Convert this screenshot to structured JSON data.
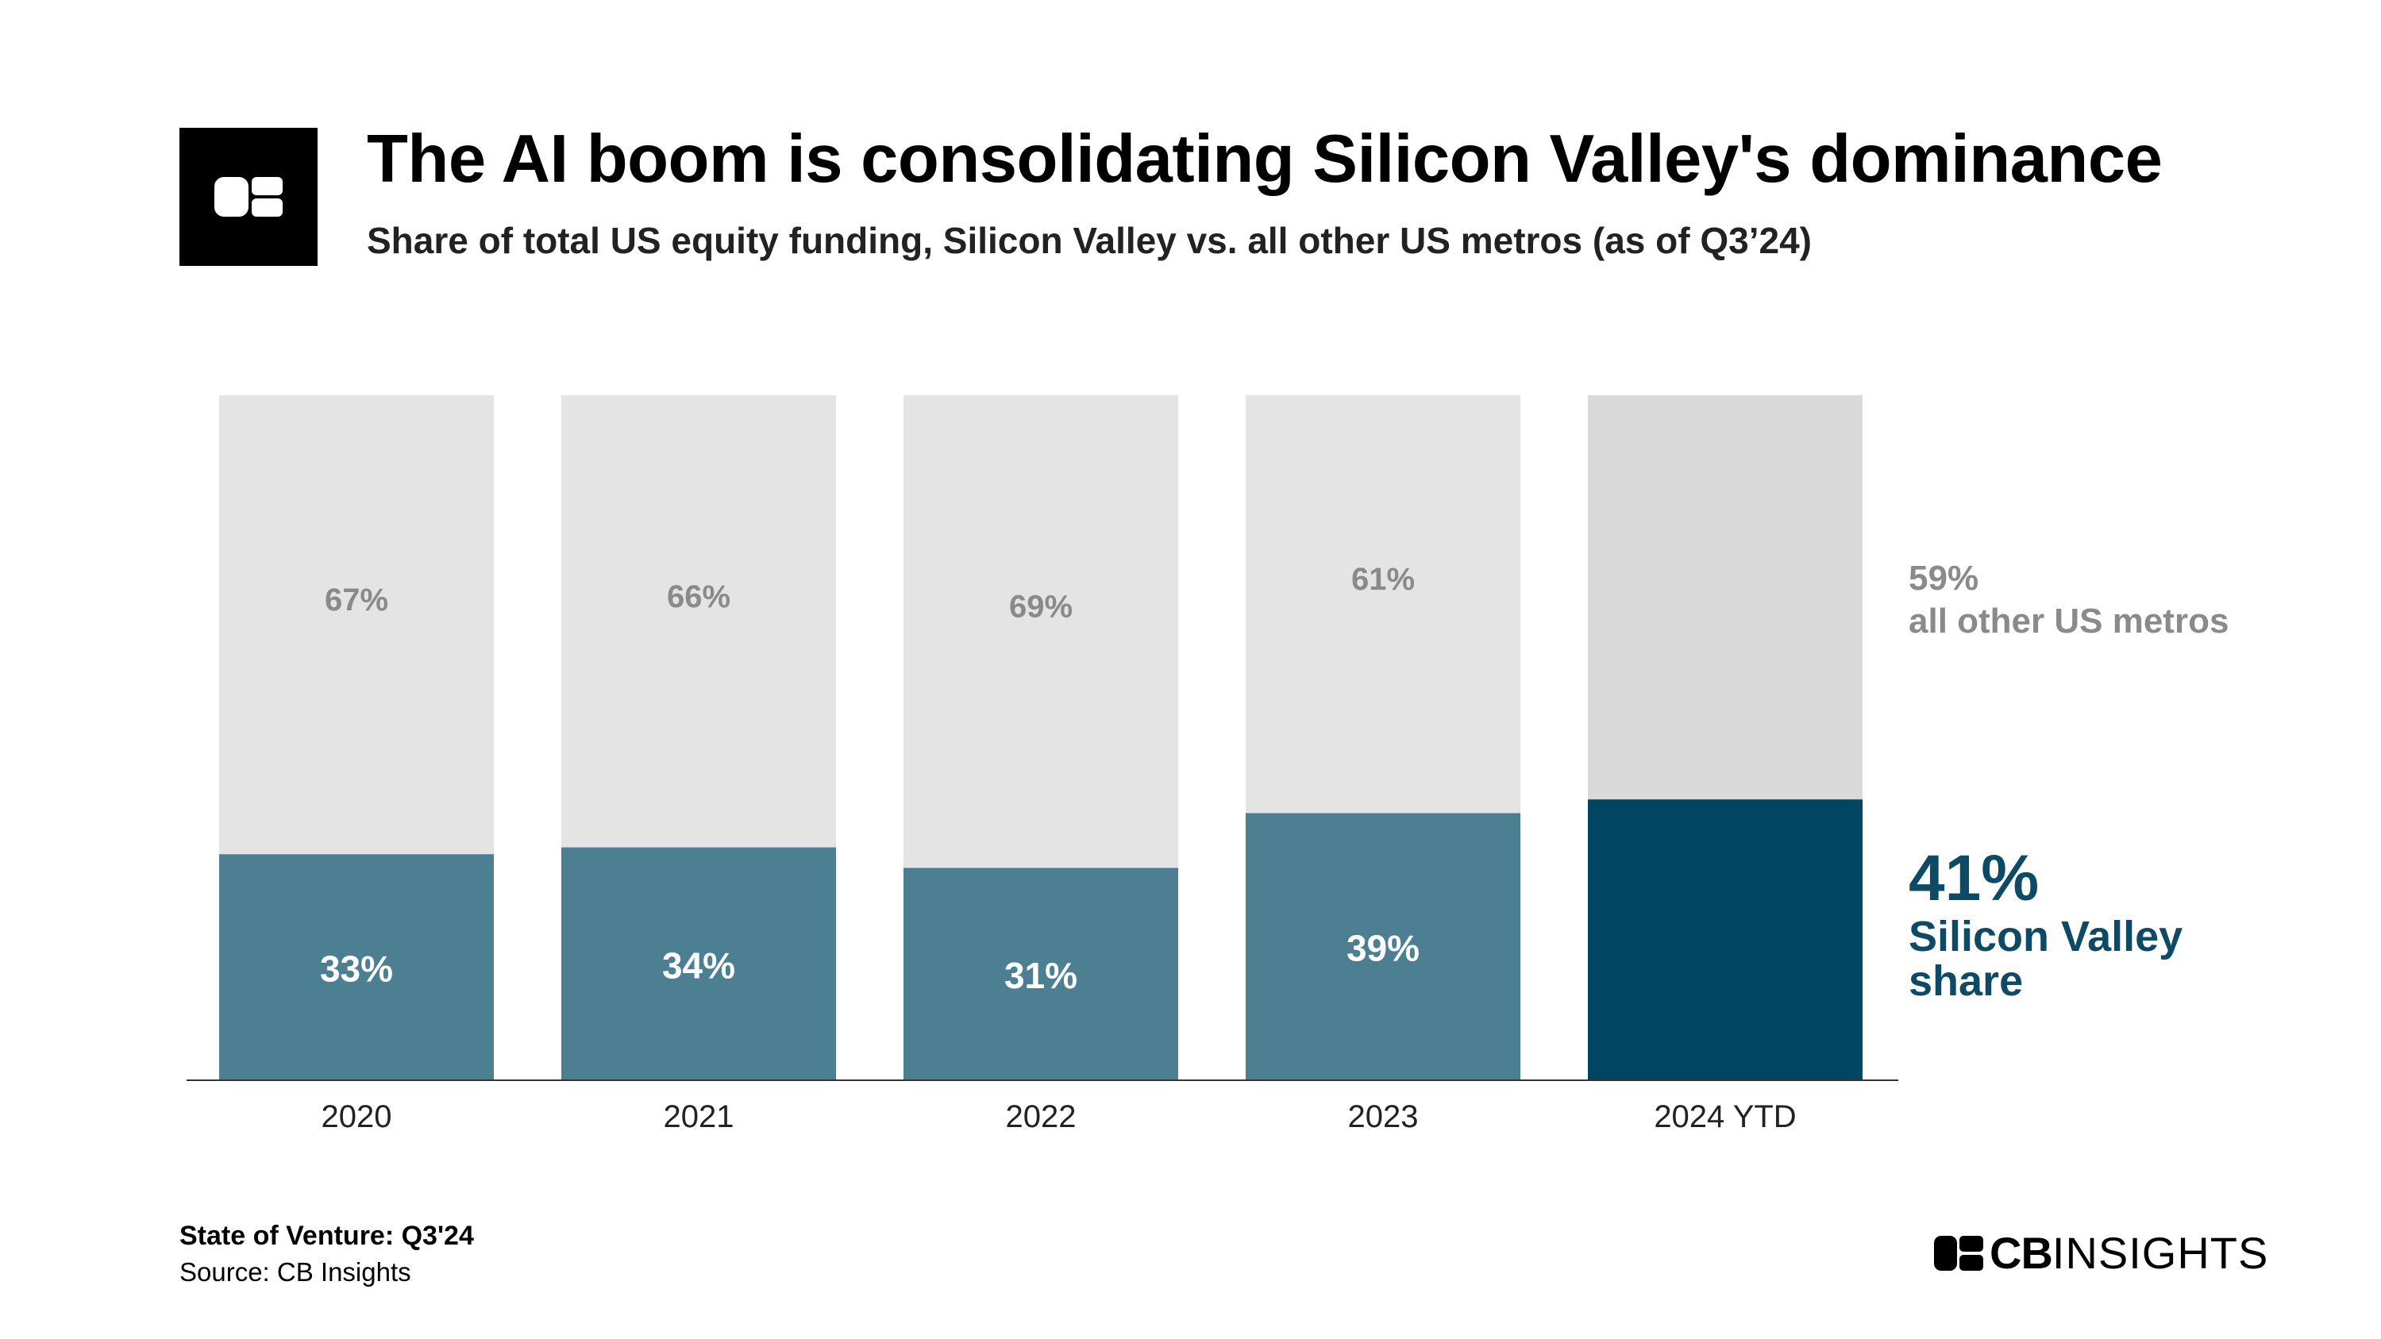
{
  "header": {
    "title": "The AI boom is consolidating Silicon Valley's dominance",
    "subtitle": "Share of total US equity funding, Silicon Valley vs. all other US metros (as of Q3’24)",
    "logo_icon": "cb-logo-icon"
  },
  "colors": {
    "silicon_valley": "#4d7f93",
    "silicon_valley_highlight": "#004663",
    "other_metros": "#e4e4e4",
    "other_metros_highlight": "#d9d9d9",
    "other_label": "#8a8a8a",
    "highlight_label": "#0d4a66"
  },
  "chart_data": {
    "type": "bar",
    "stacked": true,
    "title": "The AI boom is consolidating Silicon Valley's dominance",
    "subtitle": "Share of total US equity funding, Silicon Valley vs. all other US metros (as of Q3’24)",
    "categories": [
      "2020",
      "2021",
      "2022",
      "2023",
      "2024 YTD"
    ],
    "series": [
      {
        "name": "Silicon Valley share",
        "values": [
          33,
          34,
          31,
          39,
          41
        ],
        "labels": [
          "33%",
          "34%",
          "31%",
          "39%",
          ""
        ]
      },
      {
        "name": "all other US metros",
        "values": [
          67,
          66,
          69,
          61,
          59
        ],
        "labels": [
          "67%",
          "66%",
          "69%",
          "61%",
          ""
        ]
      }
    ],
    "ylim": [
      0,
      100
    ],
    "grid": false,
    "highlight_category": "2024 YTD"
  },
  "annotations": {
    "other_pct": "59%",
    "other_label": "all other US metros",
    "sv_pct": "41%",
    "sv_label_line1": "Silicon Valley",
    "sv_label_line2": "share"
  },
  "footer": {
    "report": "State of Venture: Q3'24",
    "source": "Source: CB Insights",
    "brand_bold": "CB",
    "brand_light": "INSIGHTS",
    "brand_icon": "cb-logo-icon"
  }
}
